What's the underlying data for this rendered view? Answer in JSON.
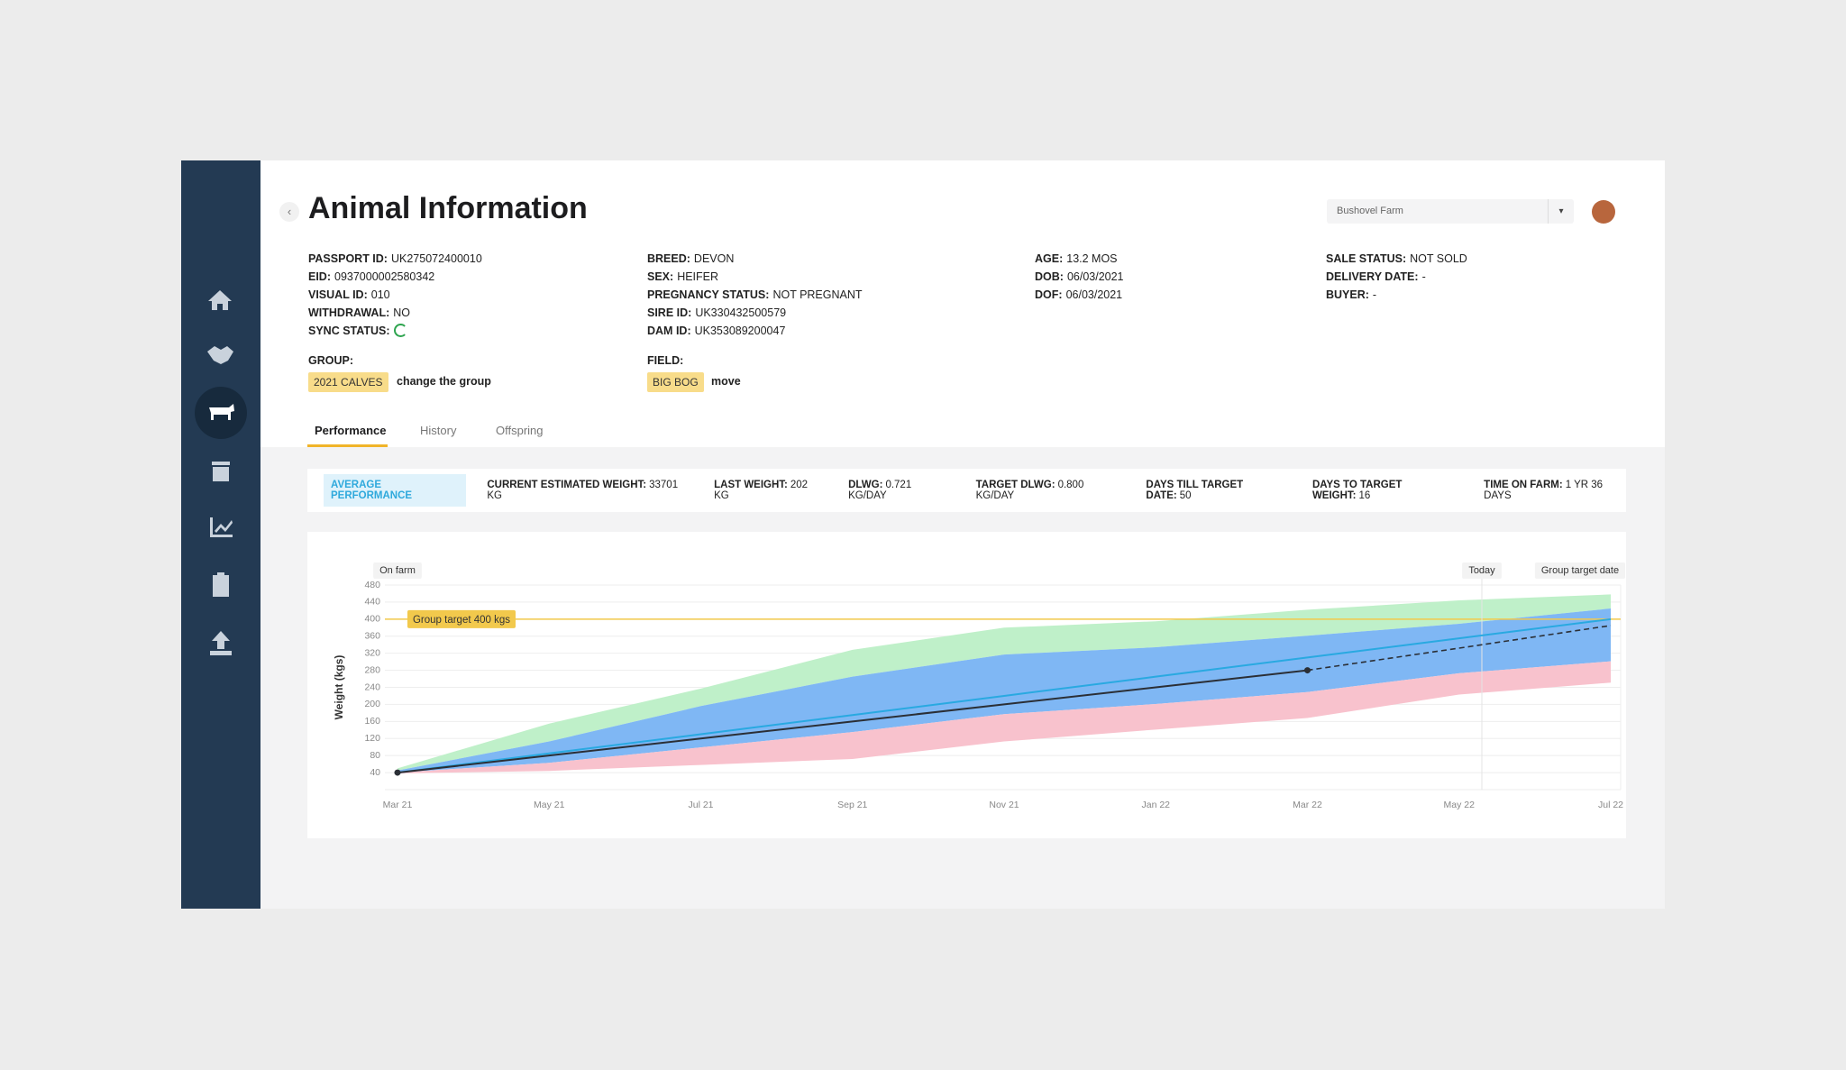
{
  "header": {
    "title": "Animal Information",
    "farm": "Bushovel Farm"
  },
  "details": [
    [
      {
        "label": "PASSPORT ID:",
        "value": "UK275072400010"
      },
      {
        "label": "EID:",
        "value": "0937000002580342"
      },
      {
        "label": "VISUAL ID:",
        "value": "010"
      },
      {
        "label": "WITHDRAWAL:",
        "value": "NO"
      },
      {
        "label": "SYNC STATUS:"
      }
    ],
    [
      {
        "label": "BREED:",
        "value": "DEVON"
      },
      {
        "label": "SEX:",
        "value": "HEIFER"
      },
      {
        "label": "PREGNANCY STATUS:",
        "value": "NOT PREGNANT"
      },
      {
        "label": "SIRE ID:",
        "value": "UK330432500579"
      },
      {
        "label": "DAM ID:",
        "value": "UK353089200047"
      }
    ],
    [
      {
        "label": "AGE:",
        "value": "13.2 MOS"
      },
      {
        "label": "DOB:",
        "value": "06/03/2021"
      },
      {
        "label": "DOF:",
        "value": "06/03/2021"
      }
    ],
    [
      {
        "label": "SALE STATUS:",
        "value": "NOT SOLD"
      },
      {
        "label": "DELIVERY DATE:",
        "value": "-"
      },
      {
        "label": "BUYER:",
        "value": "-"
      }
    ]
  ],
  "group": {
    "label": "GROUP:",
    "tag": "2021 CALVES",
    "action": "change the group"
  },
  "field": {
    "label": "FIELD:",
    "tag": "BIG BOG",
    "action": "move"
  },
  "tabs": [
    "Performance",
    "History",
    "Offspring"
  ],
  "stats": {
    "badge": "AVERAGE PERFORMANCE",
    "items": [
      {
        "label": "CURRENT ESTIMATED WEIGHT:",
        "value": "33701 KG"
      },
      {
        "label": "LAST WEIGHT:",
        "value": "202 KG"
      },
      {
        "label": "DLWG:",
        "value": "0.721 KG/DAY"
      },
      {
        "label": "TARGET DLWG:",
        "value": "0.800 KG/DAY"
      },
      {
        "label": "DAYS TILL TARGET DATE:",
        "value": "50"
      },
      {
        "label": "DAYS TO TARGET WEIGHT:",
        "value": "16"
      },
      {
        "label": "TIME ON FARM:",
        "value": "1 YR 36 DAYS"
      }
    ]
  },
  "chart_data": {
    "type": "line",
    "ylabel": "Weight (kgs)",
    "categories": [
      "Mar 21",
      "May 21",
      "Jul 21",
      "Sep 21",
      "Nov 21",
      "Jan 22",
      "Mar 22",
      "May 22",
      "Jul 22"
    ],
    "ylim": [
      0,
      480
    ],
    "yticks": [
      40,
      80,
      120,
      160,
      200,
      240,
      280,
      320,
      360,
      400,
      440,
      480
    ],
    "grid": true,
    "boundaries": [
      {
        "values": [
          50,
          155,
          237,
          328,
          380,
          395,
          422,
          444,
          458
        ]
      },
      {
        "values": [
          45,
          113,
          196,
          265,
          317,
          334,
          361,
          389,
          425
        ]
      },
      {
        "values": [
          40,
          63,
          99,
          135,
          177,
          201,
          229,
          273,
          301
        ]
      },
      {
        "values": [
          38,
          44,
          58,
          72,
          113,
          141,
          168,
          223,
          251
        ]
      }
    ],
    "band_colors": [
      "#bff0c9",
      "#7fb7f4",
      "#f8c2cd"
    ],
    "series": [
      {
        "color": "#29a9e1",
        "values": [
          40,
          85,
          130,
          175,
          220,
          265,
          310,
          355,
          400
        ]
      },
      {
        "color": "#2b2f36",
        "values": [
          40,
          80,
          120,
          160,
          200,
          240,
          280,
          null,
          null
        ]
      },
      {
        "color": "#2b2f36",
        "dashed": true,
        "values": [
          null,
          null,
          null,
          null,
          null,
          null,
          280,
          332,
          385
        ]
      }
    ],
    "target": {
      "value": 400,
      "label": "Group target 400 kgs",
      "color": "#f2c94c"
    },
    "annotations": [
      "On farm",
      "Today",
      "Group target date"
    ]
  }
}
